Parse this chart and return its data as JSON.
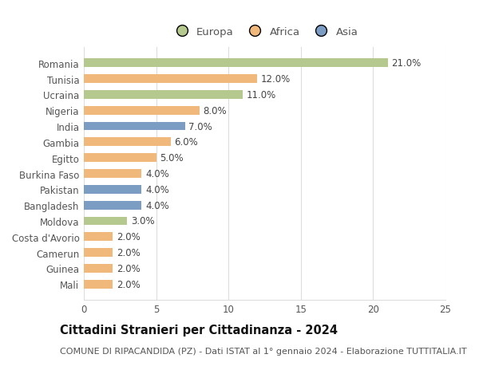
{
  "categories": [
    "Romania",
    "Tunisia",
    "Ucraina",
    "Nigeria",
    "India",
    "Gambia",
    "Egitto",
    "Burkina Faso",
    "Pakistan",
    "Bangladesh",
    "Moldova",
    "Costa d'Avorio",
    "Camerun",
    "Guinea",
    "Mali"
  ],
  "values": [
    21.0,
    12.0,
    11.0,
    8.0,
    7.0,
    6.0,
    5.0,
    4.0,
    4.0,
    4.0,
    3.0,
    2.0,
    2.0,
    2.0,
    2.0
  ],
  "continents": [
    "Europa",
    "Africa",
    "Europa",
    "Africa",
    "Asia",
    "Africa",
    "Africa",
    "Africa",
    "Asia",
    "Asia",
    "Europa",
    "Africa",
    "Africa",
    "Africa",
    "Africa"
  ],
  "colors": {
    "Europa": "#b5c98e",
    "Africa": "#f0b87a",
    "Asia": "#7b9dc4"
  },
  "xlim": [
    0,
    25
  ],
  "xticks": [
    0,
    5,
    10,
    15,
    20,
    25
  ],
  "title": "Cittadini Stranieri per Cittadinanza - 2024",
  "subtitle": "COMUNE DI RIPACANDIDA (PZ) - Dati ISTAT al 1° gennaio 2024 - Elaborazione TUTTITALIA.IT",
  "background_color": "#ffffff",
  "bar_height": 0.55,
  "title_fontsize": 10.5,
  "subtitle_fontsize": 8,
  "label_fontsize": 8.5,
  "tick_fontsize": 8.5,
  "legend_fontsize": 9.5,
  "grid_color": "#dddddd",
  "text_color": "#555555",
  "label_color": "#444444"
}
